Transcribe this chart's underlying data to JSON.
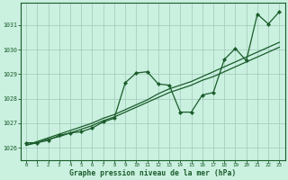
{
  "title": "Graphe pression niveau de la mer (hPa)",
  "bg_color": "#caf0e0",
  "grid_color": "#a0c8b8",
  "line_color": "#1a5c2a",
  "xlim": [
    -0.5,
    23.5
  ],
  "ylim": [
    1025.5,
    1031.9
  ],
  "yticks": [
    1026,
    1027,
    1028,
    1029,
    1030,
    1031
  ],
  "xticks": [
    0,
    1,
    2,
    3,
    4,
    5,
    6,
    7,
    8,
    9,
    10,
    11,
    12,
    13,
    14,
    15,
    16,
    17,
    18,
    19,
    20,
    21,
    22,
    23
  ],
  "zigzag_x": [
    0,
    1,
    2,
    3,
    4,
    5,
    6,
    7,
    8,
    9,
    10,
    11,
    12,
    13,
    14,
    15,
    16,
    17,
    18,
    19,
    20,
    21,
    22,
    23
  ],
  "zigzag_y": [
    1026.2,
    1026.2,
    1026.3,
    1026.5,
    1026.6,
    1026.65,
    1026.8,
    1027.05,
    1027.2,
    1028.65,
    1029.05,
    1029.1,
    1028.6,
    1028.55,
    1027.45,
    1027.45,
    1028.15,
    1028.25,
    1029.6,
    1030.05,
    1029.55,
    1031.45,
    1031.05,
    1031.55
  ],
  "trend1_x": [
    0,
    1,
    2,
    3,
    4,
    5,
    6,
    7,
    8,
    9,
    10,
    11,
    12,
    13,
    14,
    15,
    16,
    17,
    18,
    19,
    20,
    21,
    22,
    23
  ],
  "trend1_y": [
    1026.1,
    1026.2,
    1026.35,
    1026.45,
    1026.6,
    1026.75,
    1026.9,
    1027.1,
    1027.25,
    1027.45,
    1027.65,
    1027.85,
    1028.05,
    1028.25,
    1028.4,
    1028.55,
    1028.75,
    1028.9,
    1029.1,
    1029.3,
    1029.5,
    1029.7,
    1029.9,
    1030.1
  ],
  "trend2_x": [
    0,
    1,
    2,
    3,
    4,
    5,
    6,
    7,
    8,
    9,
    10,
    11,
    12,
    13,
    14,
    15,
    16,
    17,
    18,
    19,
    20,
    21,
    22,
    23
  ],
  "trend2_y": [
    1026.1,
    1026.25,
    1026.4,
    1026.55,
    1026.7,
    1026.85,
    1027.0,
    1027.2,
    1027.35,
    1027.55,
    1027.75,
    1027.95,
    1028.2,
    1028.4,
    1028.55,
    1028.7,
    1028.9,
    1029.1,
    1029.3,
    1029.5,
    1029.7,
    1029.9,
    1030.1,
    1030.3
  ]
}
